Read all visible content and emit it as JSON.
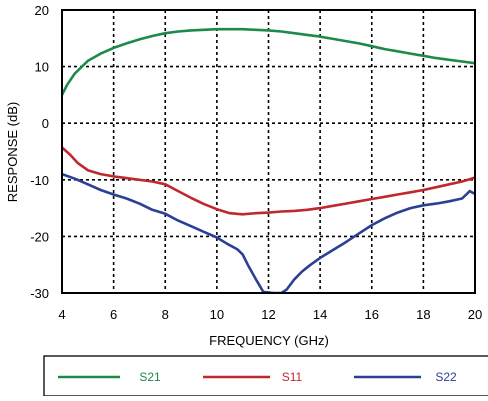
{
  "chart_data": {
    "type": "line",
    "xlabel": "FREQUENCY (GHz)",
    "ylabel": "RESPONSE (dB)",
    "xlim": [
      4,
      20
    ],
    "ylim": [
      -30,
      20
    ],
    "x_ticks": [
      4,
      6,
      8,
      10,
      12,
      14,
      16,
      18,
      20
    ],
    "y_ticks": [
      20,
      10,
      0,
      -10,
      -20,
      -30
    ],
    "grid": true,
    "legend_position": "bottom",
    "series": [
      {
        "name": "S21",
        "color": "#1e8a4a",
        "x": [
          4.0,
          4.2,
          4.5,
          5.0,
          5.5,
          6.0,
          6.5,
          7.0,
          7.5,
          8.0,
          8.5,
          9.0,
          9.5,
          10.0,
          10.5,
          11.0,
          11.5,
          12.0,
          12.5,
          13.0,
          13.5,
          14.0,
          14.5,
          15.0,
          15.5,
          16.0,
          16.5,
          17.0,
          17.5,
          18.0,
          18.5,
          19.0,
          19.5,
          20.0
        ],
        "y": [
          5.0,
          6.8,
          8.8,
          11.0,
          12.3,
          13.3,
          14.1,
          14.8,
          15.4,
          15.9,
          16.2,
          16.4,
          16.5,
          16.6,
          16.6,
          16.6,
          16.5,
          16.4,
          16.2,
          15.9,
          15.6,
          15.3,
          14.9,
          14.5,
          14.1,
          13.6,
          13.1,
          12.7,
          12.3,
          11.9,
          11.5,
          11.2,
          10.9,
          10.6
        ]
      },
      {
        "name": "S11",
        "color": "#c0282e",
        "x": [
          4.0,
          4.3,
          4.6,
          5.0,
          5.5,
          6.0,
          6.5,
          7.0,
          7.5,
          8.0,
          8.5,
          9.0,
          9.5,
          10.0,
          10.5,
          11.0,
          11.5,
          12.0,
          12.5,
          13.0,
          13.5,
          14.0,
          14.5,
          15.0,
          15.5,
          16.0,
          16.5,
          17.0,
          17.5,
          18.0,
          18.5,
          19.0,
          19.5,
          19.8,
          20.0
        ],
        "y": [
          -4.3,
          -5.5,
          -7.0,
          -8.3,
          -9.0,
          -9.4,
          -9.7,
          -10.0,
          -10.3,
          -10.8,
          -12.0,
          -13.2,
          -14.3,
          -15.2,
          -15.9,
          -16.1,
          -15.9,
          -15.8,
          -15.6,
          -15.5,
          -15.3,
          -15.0,
          -14.6,
          -14.2,
          -13.8,
          -13.4,
          -13.0,
          -12.6,
          -12.2,
          -11.8,
          -11.3,
          -10.8,
          -10.3,
          -9.9,
          -9.6
        ]
      },
      {
        "name": "S22",
        "color": "#2c3f96",
        "x": [
          4.0,
          4.5,
          5.0,
          5.5,
          6.0,
          6.5,
          7.0,
          7.5,
          8.0,
          8.5,
          9.0,
          9.5,
          10.0,
          10.4,
          10.8,
          11.0,
          11.2,
          11.5,
          11.8,
          12.2,
          12.5,
          12.7,
          13.0,
          13.3,
          13.6,
          14.0,
          14.5,
          15.0,
          15.5,
          16.0,
          16.5,
          17.0,
          17.5,
          18.0,
          18.5,
          19.0,
          19.5,
          19.8,
          20.0
        ],
        "y": [
          -9.0,
          -9.8,
          -10.8,
          -11.8,
          -12.6,
          -13.3,
          -14.2,
          -15.3,
          -16.0,
          -17.2,
          -18.2,
          -19.2,
          -20.2,
          -21.3,
          -22.3,
          -23.2,
          -25.0,
          -27.5,
          -29.8,
          -30.0,
          -30.0,
          -29.4,
          -27.6,
          -26.2,
          -25.1,
          -23.8,
          -22.4,
          -21.0,
          -19.5,
          -18.0,
          -16.8,
          -15.8,
          -15.0,
          -14.5,
          -14.2,
          -13.8,
          -13.3,
          -12.0,
          -12.5
        ]
      }
    ]
  }
}
